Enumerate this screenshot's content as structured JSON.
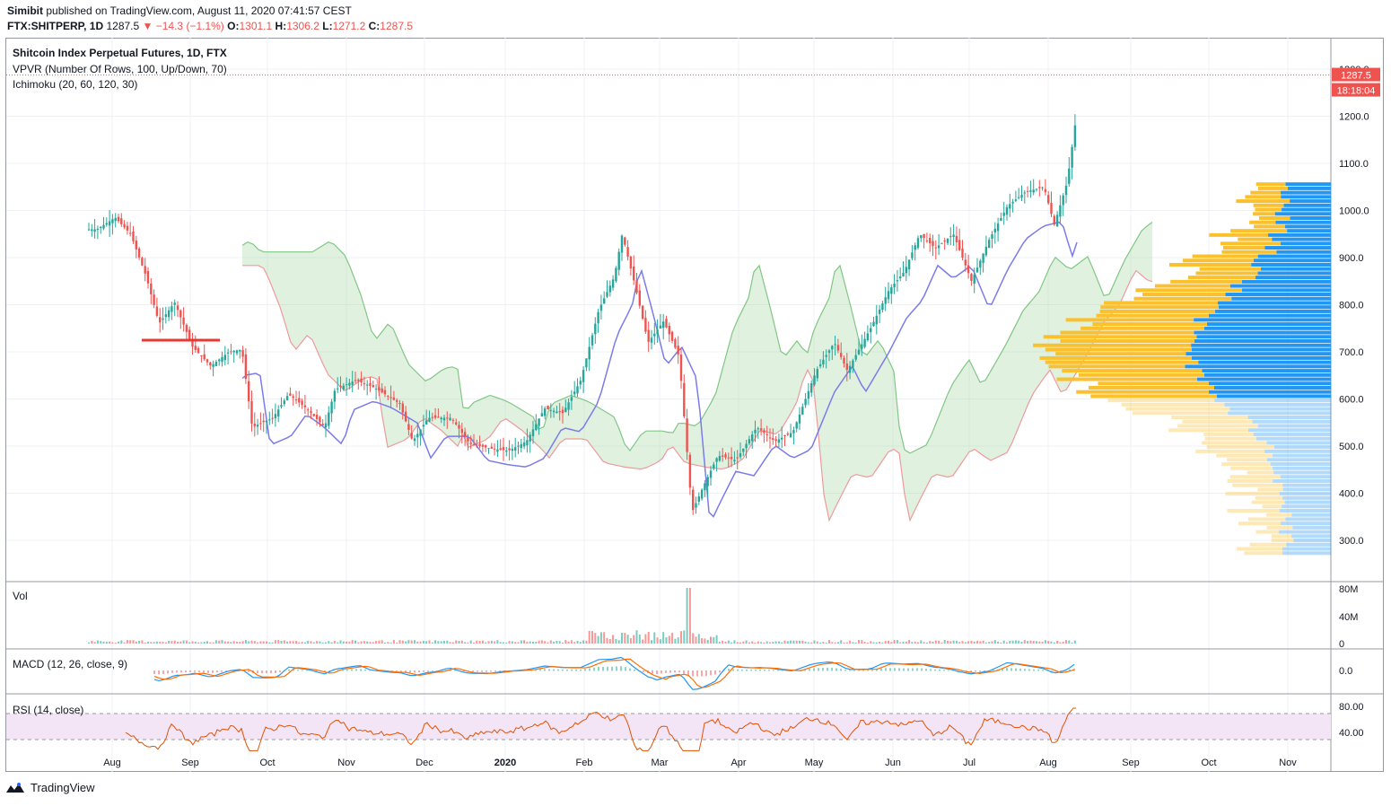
{
  "header": {
    "publisher": "Simibit",
    "published_text": "published on TradingView.com, August 11, 2020 07:41:57 CEST",
    "symbol": "FTX:SHITPERP, 1D",
    "last": "1287.5",
    "change": "▼ −14.3 (−1.1%)",
    "o_label": "O:",
    "o_val": "1301.1",
    "h_label": "H:",
    "h_val": "1306.2",
    "l_label": "L:",
    "l_val": "1271.2",
    "c_label": "C:",
    "c_val": "1287.5"
  },
  "overlay": {
    "title": "Shitcoin Index Perpetual Futures, 1D, FTX",
    "vpvr": "VPVR (Number Of Rows, 100, Up/Down, 70)",
    "ichimoku": "Ichimoku (20, 60, 120, 30)"
  },
  "price_tag": {
    "price": "1287.5",
    "countdown": "18:18:04"
  },
  "panes": {
    "vol": "Vol",
    "macd": "MACD (12, 26, close, 9)",
    "rsi": "RSI (14, close)"
  },
  "footer": {
    "brand": "TradingView"
  },
  "colors": {
    "up": "#26a69a",
    "down": "#ef5350",
    "tenkan": "#7b7bea",
    "kijun": "#ef9a9a",
    "cloud_up": "#a5d6a7",
    "cloud_down": "#ffcdd2",
    "vp_up": "#2196f3",
    "vp_down": "#fbc02d",
    "macd": "#2196f3",
    "signal": "#ff6d00",
    "rsi": "#e65100",
    "rsi_band": "#f3e5f5"
  },
  "chart_data": {
    "type": "candlestick",
    "x_ticks": [
      "Aug",
      "Sep",
      "Oct",
      "Nov",
      "Dec",
      "2020",
      "Feb",
      "Mar",
      "Apr",
      "May",
      "Jun",
      "Jul",
      "Aug",
      "Sep",
      "Oct",
      "Nov"
    ],
    "y_ticks": [
      "1300.0",
      "1200.0",
      "1100.0",
      "1000.0",
      "900.0",
      "800.0",
      "700.0",
      "600.0",
      "500.0",
      "400.0",
      "300.0"
    ],
    "ylim": [
      260,
      1310
    ],
    "close_path": [
      {
        "date": "2019-07-26",
        "close": 960
      },
      {
        "date": "2019-08-02",
        "close": 985
      },
      {
        "date": "2019-08-08",
        "close": 950
      },
      {
        "date": "2019-08-14",
        "close": 860
      },
      {
        "date": "2019-08-19",
        "close": 760
      },
      {
        "date": "2019-08-25",
        "close": 805
      },
      {
        "date": "2019-09-01",
        "close": 710
      },
      {
        "date": "2019-09-08",
        "close": 670
      },
      {
        "date": "2019-09-15",
        "close": 700
      },
      {
        "date": "2019-09-20",
        "close": 705
      },
      {
        "date": "2019-09-24",
        "close": 540
      },
      {
        "date": "2019-10-02",
        "close": 560
      },
      {
        "date": "2019-10-08",
        "close": 610
      },
      {
        "date": "2019-10-15",
        "close": 580
      },
      {
        "date": "2019-10-22",
        "close": 540
      },
      {
        "date": "2019-10-26",
        "close": 620
      },
      {
        "date": "2019-11-03",
        "close": 640
      },
      {
        "date": "2019-11-10",
        "close": 625
      },
      {
        "date": "2019-11-20",
        "close": 590
      },
      {
        "date": "2019-11-25",
        "close": 510
      },
      {
        "date": "2019-12-01",
        "close": 560
      },
      {
        "date": "2019-12-10",
        "close": 560
      },
      {
        "date": "2019-12-17",
        "close": 505
      },
      {
        "date": "2019-12-25",
        "close": 495
      },
      {
        "date": "2020-01-01",
        "close": 490
      },
      {
        "date": "2020-01-08",
        "close": 510
      },
      {
        "date": "2020-01-15",
        "close": 580
      },
      {
        "date": "2020-01-22",
        "close": 570
      },
      {
        "date": "2020-01-29",
        "close": 640
      },
      {
        "date": "2020-02-05",
        "close": 790
      },
      {
        "date": "2020-02-11",
        "close": 860
      },
      {
        "date": "2020-02-14",
        "close": 950
      },
      {
        "date": "2020-02-19",
        "close": 840
      },
      {
        "date": "2020-02-24",
        "close": 720
      },
      {
        "date": "2020-03-01",
        "close": 765
      },
      {
        "date": "2020-03-07",
        "close": 690
      },
      {
        "date": "2020-03-12",
        "close": 360
      },
      {
        "date": "2020-03-16",
        "close": 410
      },
      {
        "date": "2020-03-22",
        "close": 480
      },
      {
        "date": "2020-03-29",
        "close": 470
      },
      {
        "date": "2020-04-06",
        "close": 540
      },
      {
        "date": "2020-04-13",
        "close": 510
      },
      {
        "date": "2020-04-20",
        "close": 530
      },
      {
        "date": "2020-04-29",
        "close": 660
      },
      {
        "date": "2020-05-06",
        "close": 720
      },
      {
        "date": "2020-05-11",
        "close": 660
      },
      {
        "date": "2020-05-20",
        "close": 750
      },
      {
        "date": "2020-05-27",
        "close": 830
      },
      {
        "date": "2020-06-02",
        "close": 870
      },
      {
        "date": "2020-06-08",
        "close": 950
      },
      {
        "date": "2020-06-14",
        "close": 920
      },
      {
        "date": "2020-06-21",
        "close": 950
      },
      {
        "date": "2020-06-28",
        "close": 850
      },
      {
        "date": "2020-07-05",
        "close": 940
      },
      {
        "date": "2020-07-12",
        "close": 1010
      },
      {
        "date": "2020-07-19",
        "close": 1040
      },
      {
        "date": "2020-07-26",
        "close": 1050
      },
      {
        "date": "2020-07-30",
        "close": 970
      },
      {
        "date": "2020-08-04",
        "close": 1060
      },
      {
        "date": "2020-08-07",
        "close": 1180
      },
      {
        "date": "2020-08-10",
        "close": 1301
      }
    ],
    "last_price": 1287.5
  }
}
